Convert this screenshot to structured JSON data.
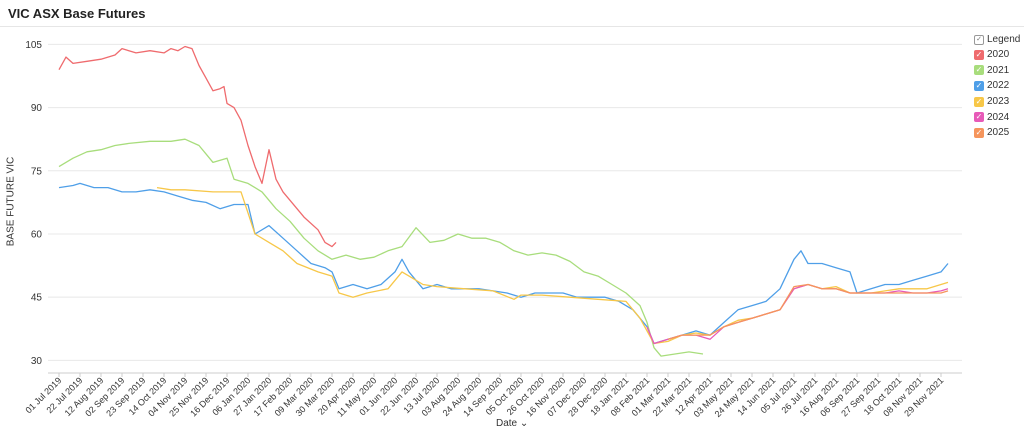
{
  "page": {
    "title": "VIC ASX Base Futures"
  },
  "chart_data": {
    "type": "line",
    "title": "VIC ASX Base Futures",
    "xlabel": "Date",
    "ylabel": "BASE FUTURE VIC",
    "x_ticks": [
      "01 Jul 2019",
      "22 Jul 2019",
      "12 Aug 2019",
      "02 Sep 2019",
      "23 Sep 2019",
      "14 Oct 2019",
      "04 Nov 2019",
      "25 Nov 2019",
      "16 Dec 2019",
      "06 Jan 2020",
      "27 Jan 2020",
      "17 Feb 2020",
      "09 Mar 2020",
      "30 Mar 2020",
      "20 Apr 2020",
      "11 May 2020",
      "01 Jun 2020",
      "22 Jun 2020",
      "13 Jul 2020",
      "03 Aug 2020",
      "24 Aug 2020",
      "14 Sep 2020",
      "05 Oct 2020",
      "26 Oct 2020",
      "16 Nov 2020",
      "07 Dec 2020",
      "28 Dec 2020",
      "18 Jan 2021",
      "08 Feb 2021",
      "01 Mar 2021",
      "22 Mar 2021",
      "12 Apr 2021",
      "03 May 2021",
      "24 May 2021",
      "14 Jun 2021",
      "05 Jul 2021",
      "26 Jul 2021",
      "16 Aug 2021",
      "06 Sep 2021",
      "27 Sep 2021",
      "18 Oct 2021",
      "08 Nov 2021",
      "29 Nov 2021"
    ],
    "x_range": [
      "2019-06-20",
      "2021-12-20"
    ],
    "y_ticks": [
      30,
      45,
      60,
      75,
      90,
      105
    ],
    "ylim": [
      27,
      107
    ],
    "grid": true,
    "legend_position": "right",
    "legend_title": "Legend",
    "series": [
      {
        "name": "2020",
        "color": "#ef6b6e",
        "points": [
          [
            "2019-07-01",
            99
          ],
          [
            "2019-07-08",
            102
          ],
          [
            "2019-07-15",
            100.5
          ],
          [
            "2019-07-29",
            101
          ],
          [
            "2019-08-12",
            101.5
          ],
          [
            "2019-08-26",
            102.5
          ],
          [
            "2019-09-02",
            104
          ],
          [
            "2019-09-16",
            103
          ],
          [
            "2019-09-30",
            103.5
          ],
          [
            "2019-10-14",
            103
          ],
          [
            "2019-10-21",
            104
          ],
          [
            "2019-10-28",
            103.5
          ],
          [
            "2019-11-04",
            104.5
          ],
          [
            "2019-11-11",
            104
          ],
          [
            "2019-11-18",
            100
          ],
          [
            "2019-11-25",
            97
          ],
          [
            "2019-12-02",
            94
          ],
          [
            "2019-12-09",
            94.5
          ],
          [
            "2019-12-13",
            95
          ],
          [
            "2019-12-16",
            91
          ],
          [
            "2019-12-23",
            90
          ],
          [
            "2019-12-30",
            87
          ],
          [
            "2020-01-06",
            81
          ],
          [
            "2020-01-13",
            76
          ],
          [
            "2020-01-20",
            72
          ],
          [
            "2020-01-27",
            80
          ],
          [
            "2020-02-03",
            73
          ],
          [
            "2020-02-10",
            70
          ],
          [
            "2020-02-17",
            68
          ],
          [
            "2020-03-02",
            64
          ],
          [
            "2020-03-16",
            61
          ],
          [
            "2020-03-23",
            58
          ],
          [
            "2020-03-30",
            57
          ],
          [
            "2020-04-03",
            58
          ]
        ]
      },
      {
        "name": "2021",
        "color": "#a8dd7c",
        "points": [
          [
            "2019-07-01",
            76
          ],
          [
            "2019-07-15",
            78
          ],
          [
            "2019-07-29",
            79.5
          ],
          [
            "2019-08-12",
            80
          ],
          [
            "2019-08-26",
            81
          ],
          [
            "2019-09-09",
            81.5
          ],
          [
            "2019-09-30",
            82
          ],
          [
            "2019-10-21",
            82
          ],
          [
            "2019-11-04",
            82.5
          ],
          [
            "2019-11-18",
            81
          ],
          [
            "2019-11-25",
            79
          ],
          [
            "2019-12-02",
            77
          ],
          [
            "2019-12-16",
            78
          ],
          [
            "2019-12-23",
            73
          ],
          [
            "2020-01-06",
            72
          ],
          [
            "2020-01-20",
            70
          ],
          [
            "2020-02-03",
            66
          ],
          [
            "2020-02-17",
            63
          ],
          [
            "2020-03-02",
            59
          ],
          [
            "2020-03-16",
            56
          ],
          [
            "2020-03-30",
            54
          ],
          [
            "2020-04-13",
            55
          ],
          [
            "2020-04-27",
            54
          ],
          [
            "2020-05-11",
            54.5
          ],
          [
            "2020-05-25",
            56
          ],
          [
            "2020-06-08",
            57
          ],
          [
            "2020-06-22",
            61.5
          ],
          [
            "2020-07-06",
            58
          ],
          [
            "2020-07-20",
            58.5
          ],
          [
            "2020-08-03",
            60
          ],
          [
            "2020-08-17",
            59
          ],
          [
            "2020-08-31",
            59
          ],
          [
            "2020-09-14",
            58
          ],
          [
            "2020-09-28",
            56
          ],
          [
            "2020-10-12",
            55
          ],
          [
            "2020-10-26",
            55.5
          ],
          [
            "2020-11-09",
            55
          ],
          [
            "2020-11-23",
            53.5
          ],
          [
            "2020-12-07",
            51
          ],
          [
            "2020-12-21",
            50
          ],
          [
            "2021-01-04",
            48
          ],
          [
            "2021-01-18",
            46
          ],
          [
            "2021-02-01",
            43
          ],
          [
            "2021-02-08",
            39
          ],
          [
            "2021-02-15",
            33
          ],
          [
            "2021-02-22",
            31
          ],
          [
            "2021-03-08",
            31.5
          ],
          [
            "2021-03-22",
            32
          ],
          [
            "2021-04-05",
            31.5
          ]
        ]
      },
      {
        "name": "2022",
        "color": "#4f9fe8",
        "points": [
          [
            "2019-07-01",
            71
          ],
          [
            "2019-07-15",
            71.5
          ],
          [
            "2019-07-22",
            72
          ],
          [
            "2019-08-05",
            71
          ],
          [
            "2019-08-19",
            71
          ],
          [
            "2019-09-02",
            70
          ],
          [
            "2019-09-16",
            70
          ],
          [
            "2019-09-30",
            70.5
          ],
          [
            "2019-10-14",
            70
          ],
          [
            "2019-10-28",
            69
          ],
          [
            "2019-11-11",
            68
          ],
          [
            "2019-11-25",
            67.5
          ],
          [
            "2019-12-09",
            66
          ],
          [
            "2019-12-23",
            67
          ],
          [
            "2020-01-06",
            67
          ],
          [
            "2020-01-13",
            60
          ],
          [
            "2020-01-27",
            62
          ],
          [
            "2020-02-10",
            59
          ],
          [
            "2020-02-24",
            56
          ],
          [
            "2020-03-09",
            53
          ],
          [
            "2020-03-23",
            52
          ],
          [
            "2020-03-30",
            51
          ],
          [
            "2020-04-06",
            47
          ],
          [
            "2020-04-20",
            48
          ],
          [
            "2020-05-04",
            47
          ],
          [
            "2020-05-18",
            48
          ],
          [
            "2020-06-01",
            51
          ],
          [
            "2020-06-08",
            54
          ],
          [
            "2020-06-15",
            51
          ],
          [
            "2020-06-29",
            47
          ],
          [
            "2020-07-13",
            48
          ],
          [
            "2020-07-27",
            47
          ],
          [
            "2020-08-10",
            47
          ],
          [
            "2020-08-24",
            47
          ],
          [
            "2020-09-07",
            46.5
          ],
          [
            "2020-09-21",
            46
          ],
          [
            "2020-10-05",
            45
          ],
          [
            "2020-10-19",
            46
          ],
          [
            "2020-11-02",
            46
          ],
          [
            "2020-11-16",
            46
          ],
          [
            "2020-11-30",
            45
          ],
          [
            "2020-12-14",
            45
          ],
          [
            "2020-12-28",
            45
          ],
          [
            "2021-01-11",
            44
          ],
          [
            "2021-01-25",
            42
          ],
          [
            "2021-02-08",
            38
          ],
          [
            "2021-02-15",
            34
          ],
          [
            "2021-03-01",
            35
          ],
          [
            "2021-03-15",
            36
          ],
          [
            "2021-03-29",
            37
          ],
          [
            "2021-04-12",
            36
          ],
          [
            "2021-04-26",
            39
          ],
          [
            "2021-05-10",
            42
          ],
          [
            "2021-05-24",
            43
          ],
          [
            "2021-06-07",
            44
          ],
          [
            "2021-06-21",
            47
          ],
          [
            "2021-07-05",
            54
          ],
          [
            "2021-07-12",
            56
          ],
          [
            "2021-07-19",
            53
          ],
          [
            "2021-08-02",
            53
          ],
          [
            "2021-08-16",
            52
          ],
          [
            "2021-08-30",
            51
          ],
          [
            "2021-09-06",
            46
          ],
          [
            "2021-09-20",
            47
          ],
          [
            "2021-10-04",
            48
          ],
          [
            "2021-10-18",
            48
          ],
          [
            "2021-11-01",
            49
          ],
          [
            "2021-11-15",
            50
          ],
          [
            "2021-11-29",
            51
          ],
          [
            "2021-12-06",
            53
          ]
        ]
      },
      {
        "name": "2023",
        "color": "#f7c748",
        "points": [
          [
            "2019-10-07",
            71
          ],
          [
            "2019-10-21",
            70.5
          ],
          [
            "2019-11-04",
            70.5
          ],
          [
            "2019-12-02",
            70
          ],
          [
            "2019-12-30",
            70
          ],
          [
            "2020-01-06",
            65
          ],
          [
            "2020-01-13",
            60
          ],
          [
            "2020-01-27",
            58
          ],
          [
            "2020-02-10",
            56
          ],
          [
            "2020-02-24",
            53
          ],
          [
            "2020-03-16",
            51
          ],
          [
            "2020-03-30",
            50
          ],
          [
            "2020-04-06",
            46
          ],
          [
            "2020-04-20",
            45
          ],
          [
            "2020-05-04",
            46
          ],
          [
            "2020-05-25",
            47
          ],
          [
            "2020-06-08",
            51
          ],
          [
            "2020-06-15",
            50
          ],
          [
            "2020-06-29",
            48
          ],
          [
            "2020-07-13",
            47.5
          ],
          [
            "2020-08-10",
            47
          ],
          [
            "2020-09-07",
            46.5
          ],
          [
            "2020-09-28",
            44.5
          ],
          [
            "2020-10-05",
            45.5
          ],
          [
            "2020-10-26",
            45.5
          ],
          [
            "2020-11-23",
            45
          ],
          [
            "2020-12-21",
            44.5
          ],
          [
            "2021-01-18",
            44
          ],
          [
            "2021-02-01",
            40
          ],
          [
            "2021-02-15",
            34
          ],
          [
            "2021-03-01",
            34.5
          ],
          [
            "2021-03-15",
            36
          ],
          [
            "2021-03-29",
            36.5
          ],
          [
            "2021-04-12",
            36
          ],
          [
            "2021-04-26",
            38
          ],
          [
            "2021-05-10",
            39.5
          ],
          [
            "2021-05-24",
            40
          ],
          [
            "2021-06-07",
            41
          ],
          [
            "2021-06-21",
            42
          ],
          [
            "2021-07-05",
            47
          ],
          [
            "2021-07-19",
            48
          ],
          [
            "2021-08-02",
            47
          ],
          [
            "2021-08-16",
            47.5
          ],
          [
            "2021-08-30",
            46
          ],
          [
            "2021-09-20",
            46
          ],
          [
            "2021-10-04",
            46.5
          ],
          [
            "2021-10-18",
            47
          ],
          [
            "2021-11-01",
            47
          ],
          [
            "2021-11-15",
            47
          ],
          [
            "2021-11-29",
            48
          ],
          [
            "2021-12-06",
            48.5
          ]
        ]
      },
      {
        "name": "2024",
        "color": "#e75ab8",
        "points": [
          [
            "2021-02-08",
            38
          ],
          [
            "2021-02-15",
            34
          ],
          [
            "2021-03-01",
            35
          ],
          [
            "2021-03-15",
            36
          ],
          [
            "2021-03-29",
            36
          ],
          [
            "2021-04-12",
            35
          ],
          [
            "2021-04-26",
            38
          ],
          [
            "2021-05-10",
            39
          ],
          [
            "2021-05-24",
            40
          ],
          [
            "2021-06-07",
            41
          ],
          [
            "2021-06-21",
            42
          ],
          [
            "2021-07-05",
            47
          ],
          [
            "2021-07-19",
            48
          ],
          [
            "2021-08-02",
            47
          ],
          [
            "2021-08-16",
            47
          ],
          [
            "2021-08-30",
            46
          ],
          [
            "2021-09-20",
            46
          ],
          [
            "2021-10-04",
            46
          ],
          [
            "2021-10-18",
            46.5
          ],
          [
            "2021-11-01",
            46
          ],
          [
            "2021-11-15",
            46
          ],
          [
            "2021-11-29",
            46.5
          ],
          [
            "2021-12-06",
            47
          ]
        ]
      },
      {
        "name": "2025",
        "color": "#f5955c",
        "points": [
          [
            "2021-03-01",
            35
          ],
          [
            "2021-03-15",
            36
          ],
          [
            "2021-03-29",
            36
          ],
          [
            "2021-04-12",
            36
          ],
          [
            "2021-04-26",
            38
          ],
          [
            "2021-05-10",
            39
          ],
          [
            "2021-05-24",
            40
          ],
          [
            "2021-06-07",
            41
          ],
          [
            "2021-06-21",
            42
          ],
          [
            "2021-07-05",
            47.5
          ],
          [
            "2021-07-19",
            48
          ],
          [
            "2021-08-02",
            47
          ],
          [
            "2021-08-16",
            47
          ],
          [
            "2021-08-30",
            46
          ],
          [
            "2021-09-20",
            46
          ],
          [
            "2021-10-04",
            46
          ],
          [
            "2021-10-18",
            46
          ],
          [
            "2021-11-01",
            46
          ],
          [
            "2021-11-15",
            46
          ],
          [
            "2021-11-29",
            46
          ],
          [
            "2021-12-06",
            46.5
          ]
        ]
      }
    ]
  }
}
